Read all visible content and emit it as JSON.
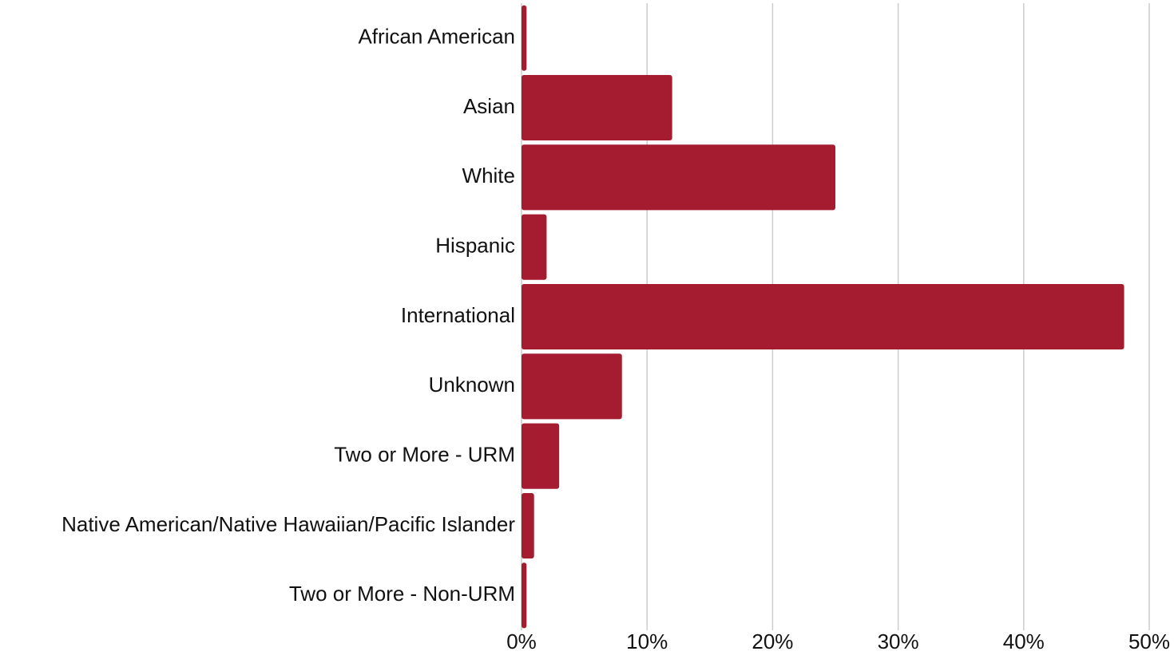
{
  "chart_data": {
    "type": "barh",
    "categories": [
      "African American",
      "Asian",
      "White",
      "Hispanic",
      "International",
      "Unknown",
      "Two or More - URM",
      "Native American/Native Hawaiian/Pacific Islander",
      "Two or More - Non-URM"
    ],
    "values": [
      0.4,
      12,
      25,
      2,
      48,
      8,
      3,
      1,
      0.4
    ],
    "color": "#a51c30",
    "xlim": [
      0,
      50
    ],
    "xticks": [
      {
        "value": 0,
        "label": "0%"
      },
      {
        "value": 10,
        "label": "10%"
      },
      {
        "value": 20,
        "label": "20%"
      },
      {
        "value": 30,
        "label": "30%"
      },
      {
        "value": 40,
        "label": "40%"
      },
      {
        "value": 50,
        "label": "50%"
      }
    ],
    "grid": true
  }
}
